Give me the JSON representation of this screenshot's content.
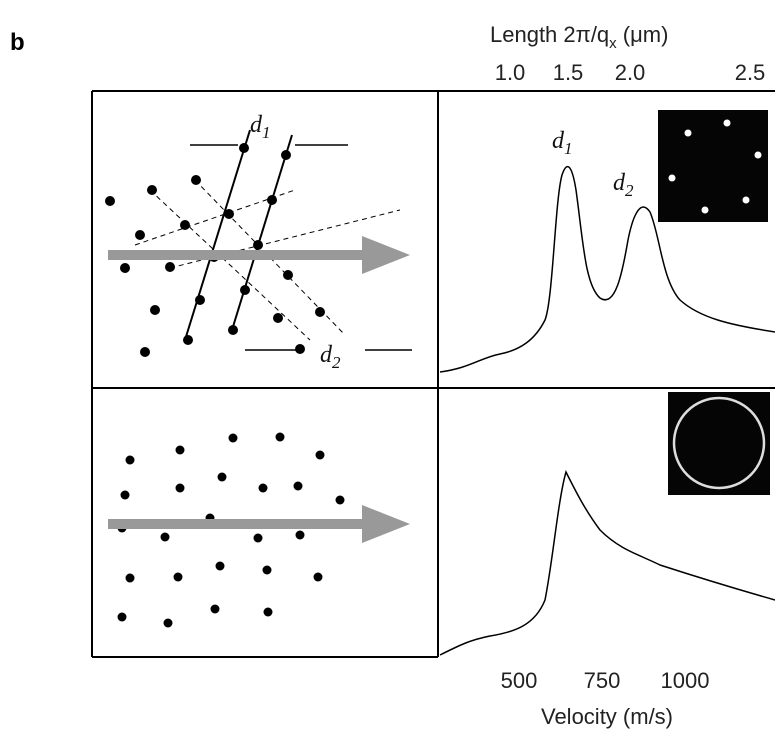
{
  "panel_label": "b",
  "top_axis": {
    "label": [
      "Length 2π/q",
      "x",
      " (μm)"
    ],
    "ticks": [
      "1.0",
      "1.5",
      "2.0",
      "2.5"
    ]
  },
  "bottom_axis": {
    "label": "Velocity (m/s)",
    "ticks": [
      "500",
      "750",
      "1000"
    ]
  },
  "annotations": {
    "left_d1": {
      "main": "d",
      "sub": "1"
    },
    "left_d2": {
      "main": "d",
      "sub": "2"
    },
    "peak_d1": {
      "main": "d",
      "sub": "1"
    },
    "peak_d2": {
      "main": "d",
      "sub": "2"
    }
  }
}
